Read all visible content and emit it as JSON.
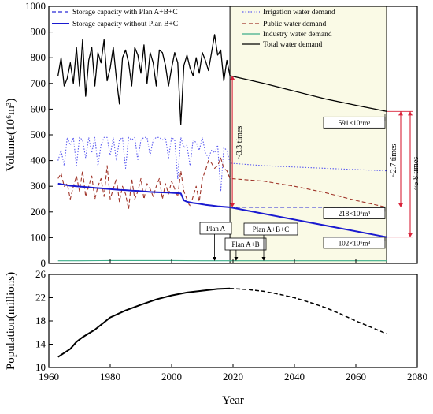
{
  "chart_data": [
    {
      "type": "line",
      "ylabel": "Volume(10⁶m³)",
      "xlim": [
        1960,
        2080
      ],
      "ylim": [
        0,
        1000
      ],
      "yticks": [
        0,
        100,
        200,
        300,
        400,
        500,
        600,
        700,
        800,
        900,
        1000
      ],
      "xticks": [
        1960,
        1980,
        2000,
        2020,
        2040,
        2060,
        2080
      ],
      "grid": false,
      "legend_position": "top",
      "shaded_range": [
        2019,
        2070
      ],
      "colors": {
        "storage_a": "#2929d6",
        "storage_b": "#1a1ad0",
        "irrigation": "#5a5af0",
        "public": "#a0352a",
        "industry": "#3fae8a",
        "total": "#000000",
        "shade": "#fafae6",
        "arrow": "#d9233a"
      },
      "series": [
        {
          "name": "Storage capacity with Plan A+B+C",
          "key": "storage_a",
          "style": "dashed",
          "x": [
            2019,
            2025,
            2030,
            2035,
            2040,
            2045,
            2050,
            2055,
            2060,
            2065,
            2070
          ],
          "y": [
            218,
            218,
            218,
            218,
            218,
            218,
            218,
            218,
            218,
            218,
            218
          ]
        },
        {
          "name": "Storage capacity without Plan B+C",
          "key": "storage_b",
          "style": "solid",
          "x": [
            1963,
            1965,
            1967,
            1969,
            1971,
            1973,
            1975,
            1977,
            1979,
            1981,
            1983,
            1985,
            1987,
            1989,
            1991,
            1993,
            1995,
            1997,
            1999,
            2001,
            2003,
            2004,
            2005,
            2007,
            2009,
            2011,
            2013,
            2015,
            2017,
            2019,
            2070
          ],
          "y": [
            310,
            306,
            302,
            300,
            298,
            296,
            294,
            292,
            290,
            288,
            286,
            285,
            283,
            282,
            280,
            278,
            277,
            276,
            275,
            274,
            272,
            245,
            240,
            235,
            232,
            228,
            225,
            222,
            220,
            218,
            102
          ]
        },
        {
          "name": "Irrigation water demand",
          "key": "irrigation",
          "style": "dotted",
          "x": [
            1963,
            1964,
            1965,
            1966,
            1967,
            1968,
            1969,
            1970,
            1971,
            1972,
            1973,
            1974,
            1975,
            1976,
            1977,
            1978,
            1979,
            1980,
            1981,
            1982,
            1983,
            1984,
            1985,
            1986,
            1987,
            1988,
            1989,
            1990,
            1991,
            1992,
            1993,
            1994,
            1995,
            1996,
            1997,
            1998,
            1999,
            2000,
            2001,
            2002,
            2003,
            2004,
            2005,
            2006,
            2007,
            2008,
            2009,
            2010,
            2011,
            2012,
            2013,
            2014,
            2015,
            2016,
            2017,
            2018,
            2019,
            2030,
            2040,
            2050,
            2060,
            2070
          ],
          "y": [
            400,
            440,
            380,
            490,
            460,
            490,
            380,
            490,
            480,
            410,
            490,
            430,
            490,
            380,
            460,
            490,
            490,
            420,
            490,
            400,
            480,
            490,
            370,
            490,
            480,
            490,
            400,
            480,
            490,
            490,
            420,
            480,
            490,
            490,
            480,
            490,
            410,
            490,
            480,
            330,
            490,
            450,
            460,
            380,
            480,
            470,
            440,
            490,
            430,
            410,
            440,
            430,
            460,
            280,
            450,
            440,
            390,
            380,
            375,
            370,
            365,
            360
          ]
        },
        {
          "name": "Public water demand",
          "key": "public",
          "style": "dashed",
          "x": [
            1963,
            1964,
            1965,
            1966,
            1967,
            1968,
            1969,
            1970,
            1971,
            1972,
            1973,
            1974,
            1975,
            1976,
            1977,
            1978,
            1979,
            1980,
            1981,
            1982,
            1983,
            1984,
            1985,
            1986,
            1987,
            1988,
            1989,
            1990,
            1991,
            1992,
            1993,
            1994,
            1995,
            1996,
            1997,
            1998,
            1999,
            2000,
            2001,
            2002,
            2003,
            2004,
            2005,
            2006,
            2007,
            2008,
            2009,
            2010,
            2011,
            2012,
            2013,
            2014,
            2015,
            2016,
            2017,
            2018,
            2019,
            2030,
            2040,
            2050,
            2060,
            2070
          ],
          "y": [
            330,
            350,
            300,
            310,
            250,
            300,
            340,
            280,
            360,
            260,
            300,
            340,
            250,
            300,
            330,
            260,
            380,
            250,
            290,
            330,
            240,
            300,
            270,
            210,
            330,
            250,
            280,
            330,
            250,
            310,
            290,
            260,
            300,
            330,
            250,
            310,
            270,
            320,
            290,
            260,
            360,
            280,
            250,
            220,
            260,
            300,
            240,
            330,
            360,
            400,
            390,
            370,
            380,
            410,
            370,
            360,
            330,
            320,
            300,
            275,
            245,
            218
          ]
        },
        {
          "name": "Industry water demand",
          "key": "industry",
          "style": "solid",
          "x": [
            1963,
            1970,
            1980,
            1990,
            2000,
            2010,
            2019,
            2030,
            2040,
            2050,
            2060,
            2070
          ],
          "y": [
            10,
            10,
            11,
            11,
            11,
            10,
            10,
            10,
            10,
            10,
            10,
            10
          ]
        },
        {
          "name": "Total water demand",
          "key": "total",
          "style": "solid",
          "x": [
            1963,
            1964,
            1965,
            1966,
            1967,
            1968,
            1969,
            1970,
            1971,
            1972,
            1973,
            1974,
            1975,
            1976,
            1977,
            1978,
            1979,
            1980,
            1981,
            1982,
            1983,
            1984,
            1985,
            1986,
            1987,
            1988,
            1989,
            1990,
            1991,
            1992,
            1993,
            1994,
            1995,
            1996,
            1997,
            1998,
            1999,
            2000,
            2001,
            2002,
            2003,
            2004,
            2005,
            2006,
            2007,
            2008,
            2009,
            2010,
            2011,
            2012,
            2013,
            2014,
            2015,
            2016,
            2017,
            2018,
            2019,
            2030,
            2040,
            2050,
            2060,
            2070
          ],
          "y": [
            730,
            800,
            690,
            720,
            780,
            700,
            840,
            690,
            870,
            650,
            790,
            840,
            690,
            820,
            780,
            870,
            710,
            760,
            840,
            720,
            620,
            800,
            830,
            780,
            690,
            840,
            810,
            740,
            850,
            700,
            820,
            780,
            690,
            830,
            820,
            770,
            690,
            760,
            820,
            780,
            540,
            770,
            810,
            760,
            730,
            800,
            740,
            820,
            790,
            750,
            820,
            890,
            810,
            830,
            710,
            790,
            730,
            700,
            670,
            640,
            615,
            591
          ]
        }
      ],
      "annotations": [
        {
          "text": "591×10⁶m³",
          "x": 2070,
          "y": 591
        },
        {
          "text": "218×10⁶m³",
          "x": 2070,
          "y": 218
        },
        {
          "text": "102×10⁶m³",
          "x": 2070,
          "y": 102
        },
        {
          "text": "~3.3 times",
          "x": 2019
        },
        {
          "text": "~2.7 times",
          "x": 2070
        },
        {
          "text": "~5.8 times",
          "x": 2070
        },
        {
          "text": "Plan A",
          "x": 2014
        },
        {
          "text": "Plan A+B",
          "x": 2021
        },
        {
          "text": "Plan A+B+C",
          "x": 2030
        }
      ]
    },
    {
      "type": "line",
      "ylabel": "Population(millions)",
      "xlabel": "Year",
      "xlim": [
        1960,
        2080
      ],
      "ylim": [
        10,
        26
      ],
      "yticks": [
        10,
        14,
        18,
        22,
        26
      ],
      "xticks": [
        1960,
        1980,
        2000,
        2020,
        2040,
        2060,
        2080
      ],
      "grid": false,
      "series": [
        {
          "style": "solid",
          "x": [
            1963,
            1965,
            1967,
            1969,
            1971,
            1975,
            1980,
            1985,
            1990,
            1995,
            2000,
            2005,
            2010,
            2015,
            2019
          ],
          "y": [
            11.8,
            12.5,
            13.2,
            14.4,
            15.2,
            16.5,
            18.6,
            19.8,
            20.8,
            21.7,
            22.4,
            22.9,
            23.2,
            23.5,
            23.6
          ]
        },
        {
          "style": "dashed",
          "x": [
            2019,
            2025,
            2030,
            2035,
            2040,
            2045,
            2050,
            2055,
            2060,
            2065,
            2070
          ],
          "y": [
            23.6,
            23.4,
            23.1,
            22.6,
            22.0,
            21.2,
            20.3,
            19.2,
            18.0,
            16.9,
            15.8
          ]
        }
      ]
    }
  ]
}
